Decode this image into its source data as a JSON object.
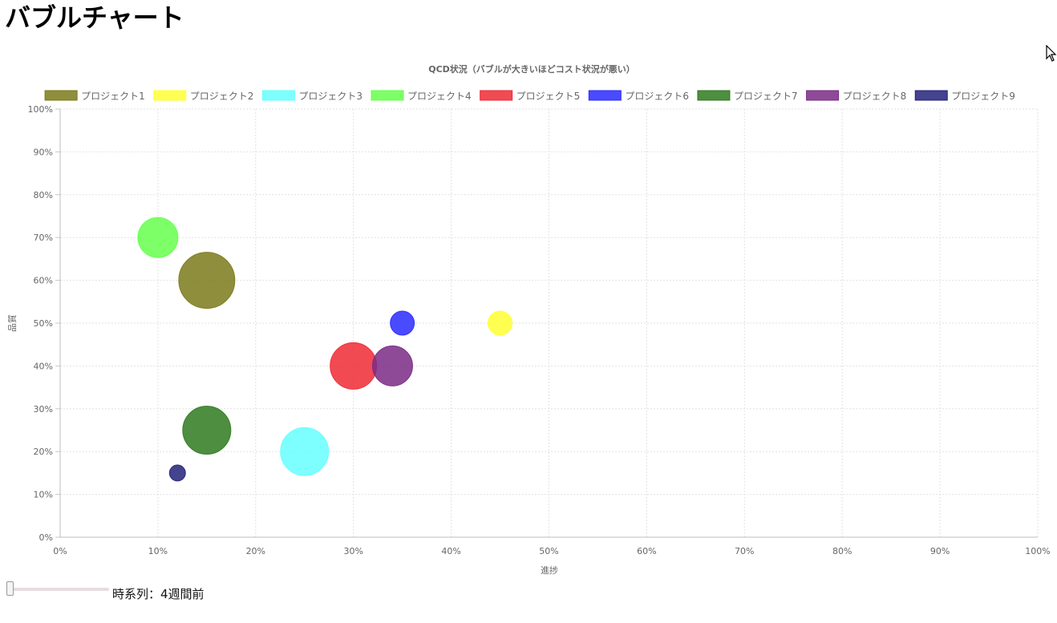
{
  "page": {
    "title": "バブルチャート"
  },
  "slider": {
    "label": "時系列：4週間前",
    "value": 0
  },
  "chart_data": {
    "type": "bubble",
    "title": "QCD状況（バブルが大きいほどコスト状況が悪い）",
    "xlabel": "進捗",
    "ylabel": "品質",
    "xlim": [
      0,
      100
    ],
    "ylim": [
      0,
      100
    ],
    "x_ticks": [
      "0%",
      "10%",
      "20%",
      "30%",
      "40%",
      "50%",
      "60%",
      "70%",
      "80%",
      "90%",
      "100%"
    ],
    "y_ticks": [
      "0%",
      "10%",
      "20%",
      "30%",
      "40%",
      "50%",
      "60%",
      "70%",
      "80%",
      "90%",
      "100%"
    ],
    "grid": true,
    "legend_position": "top",
    "series": [
      {
        "name": "プロジェクト1",
        "color": "#7a7a1a",
        "x": 15,
        "y": 60,
        "r": 35
      },
      {
        "name": "プロジェクト2",
        "color": "#ffff33",
        "x": 45,
        "y": 50,
        "r": 15
      },
      {
        "name": "プロジェクト3",
        "color": "#66ffff",
        "x": 25,
        "y": 20,
        "r": 30
      },
      {
        "name": "プロジェクト4",
        "color": "#66ff4d",
        "x": 10,
        "y": 70,
        "r": 25
      },
      {
        "name": "プロジェクト5",
        "color": "#ee2a35",
        "x": 30,
        "y": 40,
        "r": 29
      },
      {
        "name": "プロジェクト6",
        "color": "#2a2aff",
        "x": 35,
        "y": 50,
        "r": 15
      },
      {
        "name": "プロジェクト7",
        "color": "#2f7a1f",
        "x": 15,
        "y": 25,
        "r": 30
      },
      {
        "name": "プロジェクト8",
        "color": "#7a2a85",
        "x": 34,
        "y": 40,
        "r": 25
      },
      {
        "name": "プロジェクト9",
        "color": "#22227a",
        "x": 12,
        "y": 15,
        "r": 10
      }
    ]
  }
}
